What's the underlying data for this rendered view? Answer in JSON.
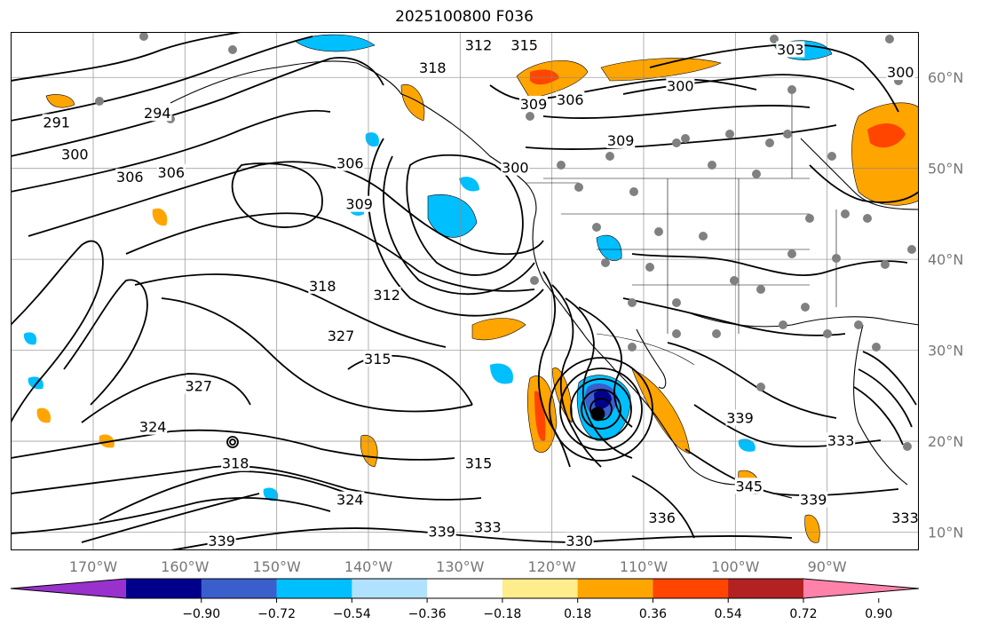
{
  "title": "2025100800 F036",
  "map": {
    "projection": "plate-carree",
    "lon_range": [
      -179,
      -80
    ],
    "lat_range": [
      8,
      65
    ],
    "gridlines": true,
    "lat_labels": [
      "10°N",
      "20°N",
      "30°N",
      "40°N",
      "50°N",
      "60°N"
    ],
    "lat_values": [
      10,
      20,
      30,
      40,
      50,
      60
    ],
    "lon_labels": [
      "170°W",
      "160°W",
      "150°W",
      "140°W",
      "130°W",
      "120°W",
      "110°W",
      "100°W",
      "90°W"
    ],
    "lon_values": [
      -170,
      -160,
      -150,
      -140,
      -130,
      -120,
      -110,
      -100,
      -90
    ],
    "contour_labels": [
      {
        "text": "291",
        "lon": -174,
        "lat": 55
      },
      {
        "text": "300",
        "lon": -172,
        "lat": 51.5
      },
      {
        "text": "306",
        "lon": -166,
        "lat": 49
      },
      {
        "text": "306",
        "lon": -161.5,
        "lat": 49.5
      },
      {
        "text": "294",
        "lon": -163,
        "lat": 56
      },
      {
        "text": "306",
        "lon": -142,
        "lat": 50.5
      },
      {
        "text": "309",
        "lon": -141,
        "lat": 46
      },
      {
        "text": "318",
        "lon": -145,
        "lat": 37
      },
      {
        "text": "312",
        "lon": -138,
        "lat": 36
      },
      {
        "text": "327",
        "lon": -143,
        "lat": 31.5
      },
      {
        "text": "315",
        "lon": -139,
        "lat": 29
      },
      {
        "text": "327",
        "lon": -158.5,
        "lat": 26
      },
      {
        "text": "324",
        "lon": -163.5,
        "lat": 21.5
      },
      {
        "text": "318",
        "lon": -154.5,
        "lat": 17.5
      },
      {
        "text": "324",
        "lon": -142,
        "lat": 13.5
      },
      {
        "text": "339",
        "lon": -156,
        "lat": 9
      },
      {
        "text": "339",
        "lon": -132,
        "lat": 10
      },
      {
        "text": "333",
        "lon": -127,
        "lat": 10.5
      },
      {
        "text": "330",
        "lon": -117,
        "lat": 9
      },
      {
        "text": "315",
        "lon": -128,
        "lat": 17.5
      },
      {
        "text": "318",
        "lon": -133,
        "lat": 61
      },
      {
        "text": "312",
        "lon": -128,
        "lat": 63.5
      },
      {
        "text": "315",
        "lon": -123,
        "lat": 63.5
      },
      {
        "text": "309",
        "lon": -122,
        "lat": 57
      },
      {
        "text": "306",
        "lon": -118,
        "lat": 57.5
      },
      {
        "text": "309",
        "lon": -112.5,
        "lat": 53
      },
      {
        "text": "300",
        "lon": -124,
        "lat": 50
      },
      {
        "text": "300",
        "lon": -106,
        "lat": 59
      },
      {
        "text": "303",
        "lon": -94,
        "lat": 63
      },
      {
        "text": "300",
        "lon": -82,
        "lat": 60.5
      },
      {
        "text": "339",
        "lon": -99.5,
        "lat": 22.5
      },
      {
        "text": "333",
        "lon": -88.5,
        "lat": 20
      },
      {
        "text": "336",
        "lon": -108,
        "lat": 11.5
      },
      {
        "text": "345",
        "lon": -98.5,
        "lat": 15
      },
      {
        "text": "339",
        "lon": -91.5,
        "lat": 13.5
      },
      {
        "text": "333",
        "lon": -81.5,
        "lat": 11.5
      }
    ],
    "storm_center": {
      "lon": -115,
      "lat": 23
    }
  },
  "colorbar": {
    "tick_labels": [
      "−0.90",
      "−0.72",
      "−0.54",
      "−0.36",
      "−0.18",
      "0.18",
      "0.36",
      "0.54",
      "0.72",
      "0.90"
    ],
    "colors": [
      "#9932cc",
      "#00008b",
      "#3a5fcd",
      "#00bfff",
      "#b0e2ff",
      "#ffffff",
      "#ffec8b",
      "#ffa500",
      "#ff4500",
      "#b22222",
      "#ff82ab"
    ],
    "extend": "both"
  }
}
